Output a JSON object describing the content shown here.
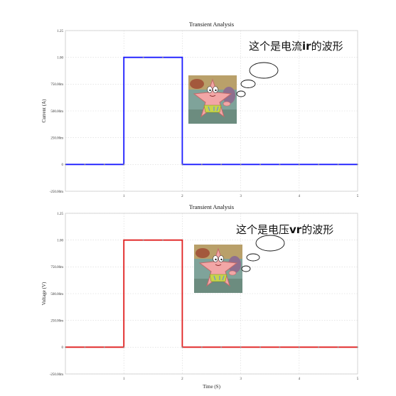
{
  "chart_data": [
    {
      "type": "line",
      "title": "Transient Analysis",
      "xlabel": "",
      "ylabel": "Current (A)",
      "xlim": [
        0,
        5
      ],
      "ylim": [
        -0.25,
        1.25
      ],
      "x_ticks": [
        "1",
        "2",
        "3",
        "4",
        "5"
      ],
      "y_ticks": [
        "1.25",
        "1.00",
        "750.00m",
        "500.00m",
        "250.00m",
        "0",
        "-250.00m"
      ],
      "grid": true,
      "series": [
        {
          "color": "#1a1aff",
          "x": [
            0,
            1,
            1,
            2,
            2,
            5
          ],
          "y": [
            0,
            0,
            1,
            1,
            0,
            0
          ]
        }
      ]
    },
    {
      "type": "line",
      "title": "Transient Analysis",
      "xlabel": "Time (S)",
      "ylabel": "Voltage (V)",
      "xlim": [
        0,
        5
      ],
      "ylim": [
        -0.25,
        1.25
      ],
      "x_ticks": [
        "1",
        "2",
        "3",
        "4",
        "5"
      ],
      "y_ticks": [
        "1.25",
        "1.00",
        "750.00m",
        "500.00m",
        "250.00m",
        "0",
        "-250.00m"
      ],
      "grid": true,
      "series": [
        {
          "color": "#e02020",
          "x": [
            0,
            1,
            1,
            2,
            2,
            5
          ],
          "y": [
            0,
            0,
            1,
            1,
            0,
            0
          ]
        }
      ]
    }
  ],
  "annotations": {
    "top": {
      "prefix": "这个是电流",
      "bold": "ir",
      "suffix": "的波形"
    },
    "bottom": {
      "prefix": "这个是电压",
      "bold": "vr",
      "suffix": "的波形"
    }
  }
}
